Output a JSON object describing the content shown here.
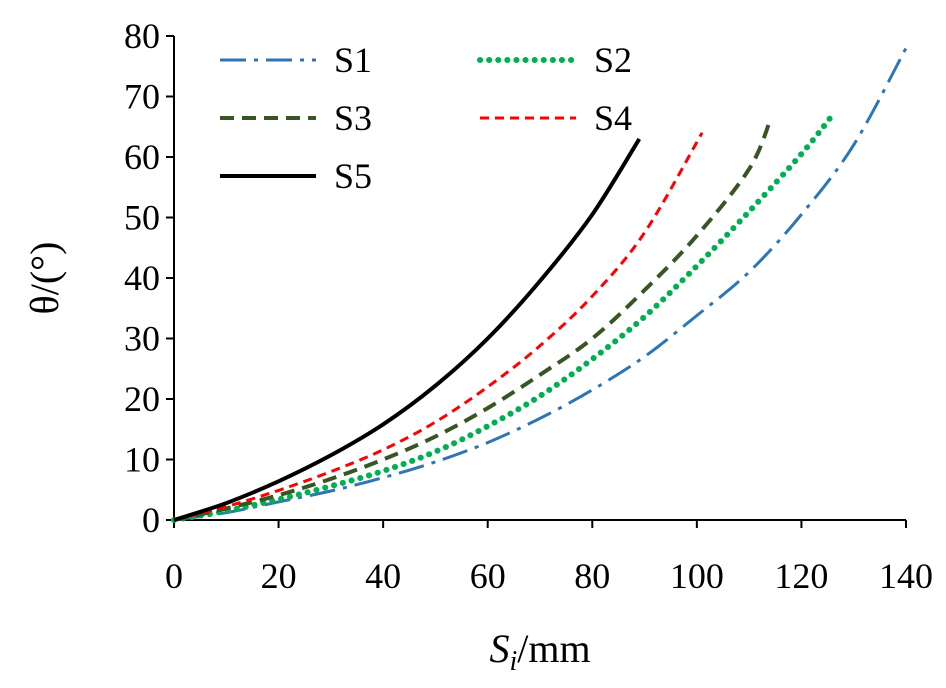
{
  "chart_data": {
    "type": "line",
    "title": "",
    "xlabel_main": "S",
    "xlabel_sub": "i",
    "xlabel_unit": "/mm",
    "ylabel": "θ/(°)",
    "xlim": [
      0,
      140
    ],
    "ylim": [
      0,
      80
    ],
    "xticks": [
      0,
      20,
      40,
      60,
      80,
      100,
      120,
      140
    ],
    "yticks": [
      0,
      10,
      20,
      30,
      40,
      50,
      60,
      70,
      80
    ],
    "xtick_labels": [
      "0",
      "20",
      "40",
      "60",
      "80",
      "100",
      "120",
      "140"
    ],
    "ytick_labels": [
      "0",
      "10",
      "20",
      "30",
      "40",
      "50",
      "60",
      "70",
      "80"
    ],
    "grid": false,
    "legend_position": "top-left",
    "series": [
      {
        "name": "S1",
        "color": "#2E75B6",
        "style": "dash-dot",
        "x": [
          0,
          10,
          20,
          30,
          40,
          50,
          60,
          70,
          80,
          90,
          100,
          110,
          120,
          130,
          140
        ],
        "y": [
          0,
          1.2,
          3.0,
          4.8,
          7.0,
          9.6,
          12.8,
          16.8,
          21.5,
          27.0,
          33.8,
          41.0,
          50.5,
          62.0,
          78.0
        ]
      },
      {
        "name": "S2",
        "color": "#00B050",
        "style": "dotted",
        "x": [
          0,
          10,
          20,
          30,
          40,
          50,
          60,
          70,
          80,
          90,
          100,
          110,
          120,
          126
        ],
        "y": [
          0,
          1.5,
          3.4,
          5.6,
          8.1,
          11.3,
          15.5,
          20.5,
          26.6,
          33.6,
          42.0,
          51.0,
          60.5,
          67.0
        ]
      },
      {
        "name": "S3",
        "color": "#375623",
        "style": "dashed",
        "x": [
          0,
          10,
          20,
          30,
          40,
          50,
          60,
          70,
          80,
          90,
          100,
          110,
          114
        ],
        "y": [
          0,
          1.9,
          4.1,
          6.8,
          10.0,
          13.8,
          18.5,
          24.0,
          30.0,
          38.0,
          47.0,
          58.0,
          66.0
        ]
      },
      {
        "name": "S4",
        "color": "#FF0000",
        "style": "short-dash",
        "x": [
          0,
          10,
          20,
          30,
          40,
          50,
          60,
          70,
          80,
          90,
          101
        ],
        "y": [
          0,
          2.2,
          4.9,
          8.0,
          11.6,
          16.2,
          22.0,
          28.8,
          37.0,
          47.5,
          64.0
        ]
      },
      {
        "name": "S5",
        "color": "#000000",
        "style": "solid",
        "x": [
          0,
          10,
          20,
          30,
          40,
          50,
          60,
          70,
          80,
          89
        ],
        "y": [
          0,
          2.8,
          6.4,
          10.7,
          15.8,
          22.2,
          30.0,
          39.5,
          50.5,
          63.0
        ]
      }
    ]
  }
}
